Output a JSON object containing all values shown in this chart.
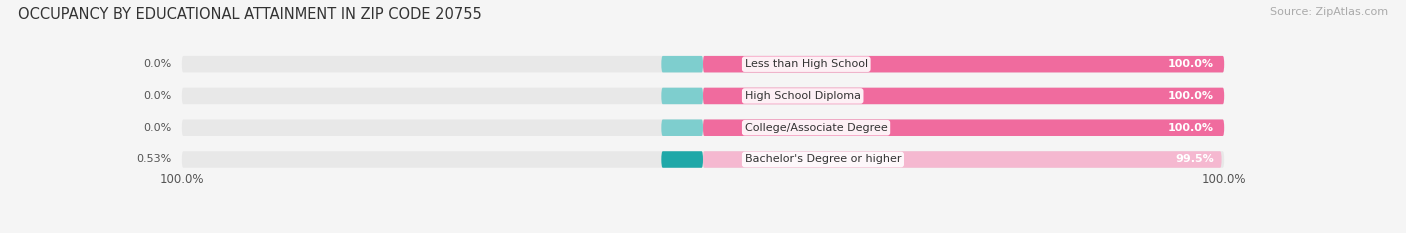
{
  "title": "OCCUPANCY BY EDUCATIONAL ATTAINMENT IN ZIP CODE 20755",
  "source": "Source: ZipAtlas.com",
  "categories": [
    "Less than High School",
    "High School Diploma",
    "College/Associate Degree",
    "Bachelor's Degree or higher"
  ],
  "owner_values": [
    0.0,
    0.0,
    0.0,
    0.53
  ],
  "renter_values": [
    100.0,
    100.0,
    100.0,
    99.5
  ],
  "owner_color_0pct": "#7ecece",
  "owner_color_pos": "#1fa8a8",
  "renter_color_100pct": "#f06b9e",
  "renter_color_99pct": "#f5b8d0",
  "bg_color": "#f5f5f5",
  "bar_bg_color": "#e8e8e8",
  "title_fontsize": 10.5,
  "source_fontsize": 8,
  "bar_label_fontsize": 8,
  "category_fontsize": 8,
  "axis_label_fontsize": 8.5
}
